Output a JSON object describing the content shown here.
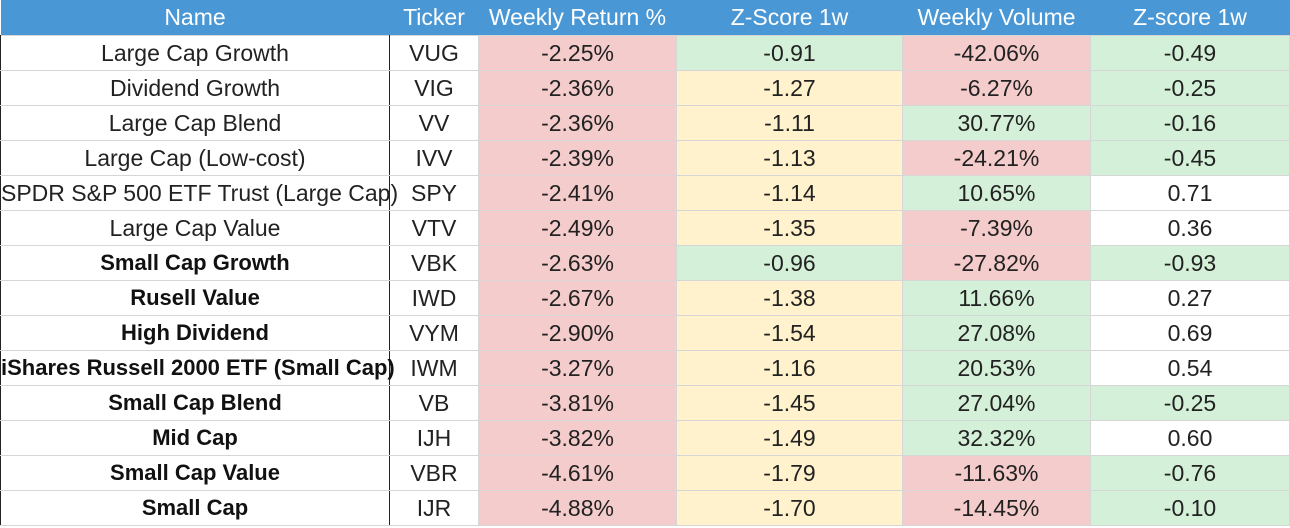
{
  "headers": {
    "name": "Name",
    "ticker": "Ticker",
    "weekly_return": "Weekly Return %",
    "zscore_1w": "Z-Score 1w",
    "weekly_volume": "Weekly Volume",
    "zscore_1w_vol": "Z-score 1w"
  },
  "colors": {
    "header_bg": "#4a97d5",
    "negative": "#f4cccc",
    "neutral": "#fff2cc",
    "positive": "#d4f0d8"
  },
  "rows": [
    {
      "name": "Large Cap Growth",
      "ticker": "VUG",
      "ret": "-2.25%",
      "z1": "-0.91",
      "vol": "-42.06%",
      "z2": "-0.49",
      "bold": false,
      "c": [
        "red",
        "green",
        "red",
        "green"
      ]
    },
    {
      "name": "Dividend Growth",
      "ticker": "VIG",
      "ret": "-2.36%",
      "z1": "-1.27",
      "vol": "-6.27%",
      "z2": "-0.25",
      "bold": false,
      "c": [
        "red",
        "yellow",
        "red",
        "green"
      ]
    },
    {
      "name": "Large Cap Blend",
      "ticker": "VV",
      "ret": "-2.36%",
      "z1": "-1.11",
      "vol": "30.77%",
      "z2": "-0.16",
      "bold": false,
      "c": [
        "red",
        "yellow",
        "green",
        "green"
      ]
    },
    {
      "name": "Large Cap (Low-cost)",
      "ticker": "IVV",
      "ret": "-2.39%",
      "z1": "-1.13",
      "vol": "-24.21%",
      "z2": "-0.45",
      "bold": false,
      "c": [
        "red",
        "yellow",
        "red",
        "green"
      ]
    },
    {
      "name": "SPDR S&P 500 ETF Trust (Large Cap)",
      "ticker": "SPY",
      "ret": "-2.41%",
      "z1": "-1.14",
      "vol": "10.65%",
      "z2": "0.71",
      "bold": false,
      "c": [
        "red",
        "yellow",
        "green",
        "white"
      ]
    },
    {
      "name": "Large Cap Value",
      "ticker": "VTV",
      "ret": "-2.49%",
      "z1": "-1.35",
      "vol": "-7.39%",
      "z2": "0.36",
      "bold": false,
      "c": [
        "red",
        "yellow",
        "red",
        "white"
      ]
    },
    {
      "name": "Small Cap Growth",
      "ticker": "VBK",
      "ret": "-2.63%",
      "z1": "-0.96",
      "vol": "-27.82%",
      "z2": "-0.93",
      "bold": true,
      "c": [
        "red",
        "green",
        "red",
        "green"
      ]
    },
    {
      "name": "Rusell Value",
      "ticker": "IWD",
      "ret": "-2.67%",
      "z1": "-1.38",
      "vol": "11.66%",
      "z2": "0.27",
      "bold": true,
      "c": [
        "red",
        "yellow",
        "green",
        "white"
      ]
    },
    {
      "name": "High Dividend",
      "ticker": "VYM",
      "ret": "-2.90%",
      "z1": "-1.54",
      "vol": "27.08%",
      "z2": "0.69",
      "bold": true,
      "c": [
        "red",
        "yellow",
        "green",
        "white"
      ]
    },
    {
      "name": "iShares Russell 2000 ETF (Small Cap)",
      "ticker": "IWM",
      "ret": "-3.27%",
      "z1": "-1.16",
      "vol": "20.53%",
      "z2": "0.54",
      "bold": true,
      "c": [
        "red",
        "yellow",
        "green",
        "white"
      ]
    },
    {
      "name": "Small Cap Blend",
      "ticker": "VB",
      "ret": "-3.81%",
      "z1": "-1.45",
      "vol": "27.04%",
      "z2": "-0.25",
      "bold": true,
      "c": [
        "red",
        "yellow",
        "green",
        "green"
      ]
    },
    {
      "name": "Mid Cap",
      "ticker": "IJH",
      "ret": "-3.82%",
      "z1": "-1.49",
      "vol": "32.32%",
      "z2": "0.60",
      "bold": true,
      "c": [
        "red",
        "yellow",
        "green",
        "white"
      ]
    },
    {
      "name": "Small Cap Value",
      "ticker": "VBR",
      "ret": "-4.61%",
      "z1": "-1.79",
      "vol": "-11.63%",
      "z2": "-0.76",
      "bold": true,
      "c": [
        "red",
        "yellow",
        "red",
        "green"
      ]
    },
    {
      "name": "Small Cap",
      "ticker": "IJR",
      "ret": "-4.88%",
      "z1": "-1.70",
      "vol": "-14.45%",
      "z2": "-0.10",
      "bold": true,
      "c": [
        "red",
        "yellow",
        "red",
        "green"
      ]
    }
  ]
}
